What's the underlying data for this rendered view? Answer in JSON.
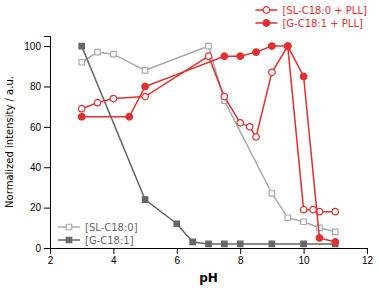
{
  "chart_data": {
    "type": "line",
    "xlabel": "pH",
    "ylabel": "Normalized intensity / a.u.",
    "xlim": [
      2,
      12
    ],
    "ylim": [
      0,
      105
    ],
    "xticks": [
      2,
      4,
      6,
      8,
      10,
      12
    ],
    "yticks": [
      0,
      20,
      40,
      60,
      80,
      100
    ],
    "series": [
      {
        "name": "[SL-C18:0]",
        "color": "#aaaaaa",
        "marker": "square-open",
        "legend": "lower left",
        "x": [
          3,
          3.5,
          4,
          5,
          7,
          7.5,
          9,
          9.5,
          10,
          10.5,
          11
        ],
        "values": [
          92,
          97,
          96,
          88,
          100,
          73,
          27,
          15,
          13,
          10,
          8
        ]
      },
      {
        "name": "[G-C18:1]",
        "color": "#666666",
        "marker": "square",
        "legend": "lower left",
        "x": [
          3,
          5,
          6,
          6.5,
          7,
          7.5,
          8,
          9,
          10,
          11
        ],
        "values": [
          100,
          24,
          12,
          3,
          2,
          2,
          2,
          2,
          2,
          2
        ]
      },
      {
        "name": "[SL-C18:0 + PLL]",
        "color": "#e03030",
        "marker": "circle-open",
        "legend": "upper right",
        "x": [
          3,
          3.5,
          4,
          5,
          7,
          7.5,
          8,
          8.3,
          8.5,
          9,
          9.5,
          10,
          10.3,
          10.5,
          11
        ],
        "values": [
          69,
          72,
          74,
          75,
          95,
          75,
          62,
          60,
          55,
          87,
          100,
          19,
          19,
          18,
          18
        ]
      },
      {
        "name": "[G-C18:1 + PLL]",
        "color": "#e03030",
        "marker": "circle",
        "legend": "upper right",
        "x": [
          3,
          4.5,
          5,
          7.5,
          8,
          8.5,
          9,
          9.5,
          10,
          10.5,
          11
        ],
        "values": [
          65,
          65,
          80,
          95,
          95,
          97,
          100,
          100,
          85,
          5,
          3
        ]
      }
    ]
  }
}
